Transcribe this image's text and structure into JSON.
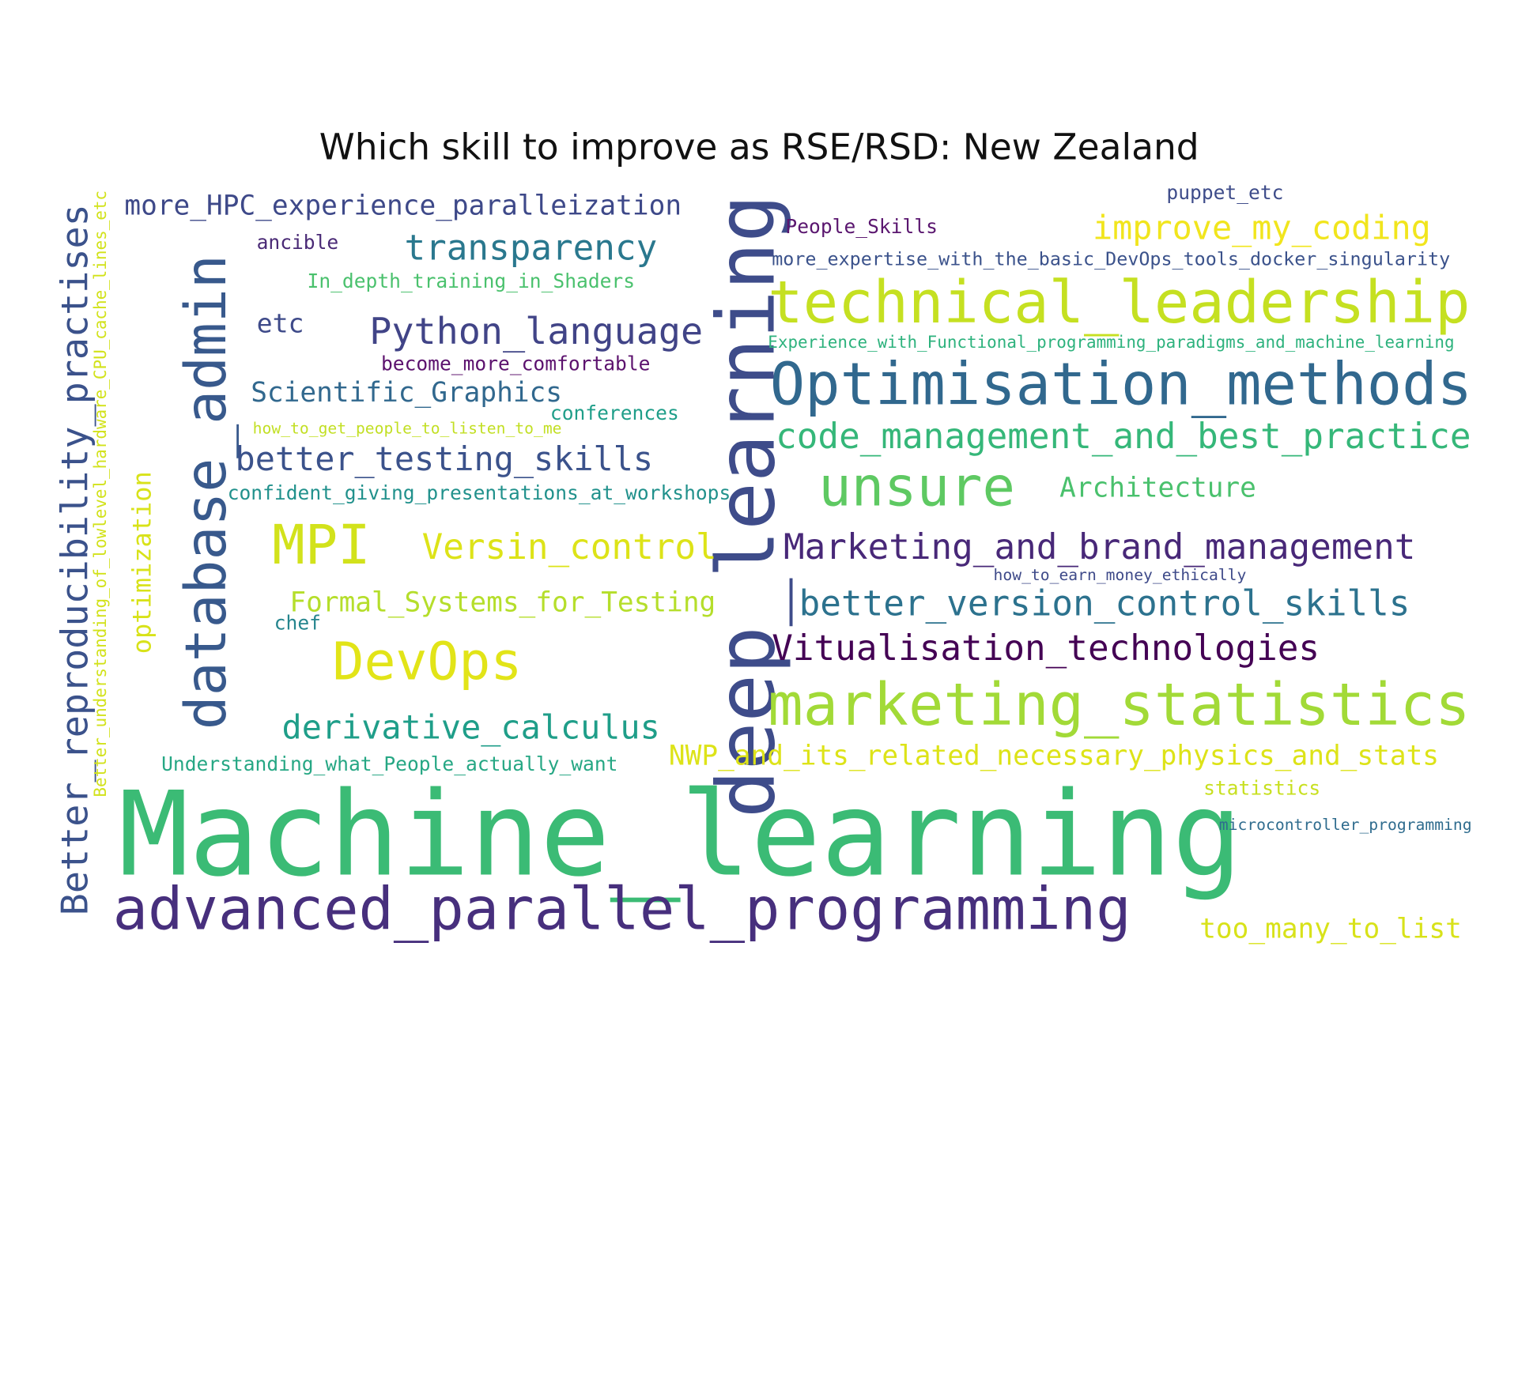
{
  "title": "Which skill to improve as RSE/RSD: New Zealand",
  "words": [
    {
      "text": "Machine_learning",
      "color": "#3bbb75"
    },
    {
      "text": "advanced_parallel_programming",
      "color": "#472f7d"
    },
    {
      "text": "deep_learning",
      "color": "#3e4c8a"
    },
    {
      "text": "database_admin",
      "color": "#38598c"
    },
    {
      "text": "Better_reproducibility_practises",
      "color": "#3b528b"
    },
    {
      "text": "technical_leadership",
      "color": "#c5e021"
    },
    {
      "text": "Optimisation_methods",
      "color": "#31688e"
    },
    {
      "text": "marketing_statistics",
      "color": "#a2da37"
    },
    {
      "text": "unsure",
      "color": "#5ec962"
    },
    {
      "text": "MPI",
      "color": "#d2e21b"
    },
    {
      "text": "DevOps",
      "color": "#e2e418"
    },
    {
      "text": "code_management_and_best_practice",
      "color": "#35b779"
    },
    {
      "text": "Marketing_and_brand_management",
      "color": "#482878"
    },
    {
      "text": "Vitualisation_technologies",
      "color": "#440154"
    },
    {
      "text": "better_version_control_skills",
      "color": "#2c728e"
    },
    {
      "text": "derivative_calculus",
      "color": "#1f9e89"
    },
    {
      "text": "better_testing_skills",
      "color": "#3b528b"
    },
    {
      "text": "Python_language",
      "color": "#414487"
    },
    {
      "text": "transparency",
      "color": "#2a788e"
    },
    {
      "text": "Versin_control",
      "color": "#dde318"
    },
    {
      "text": "NWP_and_its_related_necessary_physics_and_stats",
      "color": "#dde318"
    },
    {
      "text": "improve_my_coding",
      "color": "#f1e51d"
    },
    {
      "text": "more_HPC_experience_paralleization",
      "color": "#3e4989"
    },
    {
      "text": "Scientific_Graphics",
      "color": "#31688e"
    },
    {
      "text": "Formal_Systems_for_Testing",
      "color": "#b5de2b"
    },
    {
      "text": "too_many_to_list",
      "color": "#d8e219"
    },
    {
      "text": "Architecture",
      "color": "#4ac16d"
    },
    {
      "text": "optimization",
      "color": "#d8e219"
    },
    {
      "text": "etc",
      "color": "#3e4a89"
    },
    {
      "text": "Better_understanding_of_lowlevel_hardware_CPU_cache_lines_etc",
      "color": "#d2e21b"
    },
    {
      "text": "Understanding_what_People_actually_want",
      "color": "#26a784"
    },
    {
      "text": "confident_giving_presentations_at_workshops",
      "color": "#21918c"
    },
    {
      "text": "become_more_comfortable",
      "color": "#5c126e"
    },
    {
      "text": "In_depth_training_in_Shaders",
      "color": "#4ac16d"
    },
    {
      "text": "conferences",
      "color": "#1f9e89"
    },
    {
      "text": "more_expertise_with_the_basic_DevOps_tools_docker_singularity",
      "color": "#3b528b"
    },
    {
      "text": "Experience_with_Functional_programming_paradigms_and_machine_learning",
      "color": "#2db27d"
    },
    {
      "text": "People_Skills",
      "color": "#5a166f"
    },
    {
      "text": "ancible",
      "color": "#4a2a76"
    },
    {
      "text": "puppet_etc",
      "color": "#3e4c8a"
    },
    {
      "text": "statistics",
      "color": "#c8e020"
    },
    {
      "text": "how_to_get_people_to_listen_to_me",
      "color": "#c2df23"
    },
    {
      "text": "how_to_earn_money_ethically",
      "color": "#3e4a89"
    },
    {
      "text": "chef",
      "color": "#25858e"
    },
    {
      "text": "microcontroller_programming",
      "color": "#2f6c8e"
    }
  ]
}
